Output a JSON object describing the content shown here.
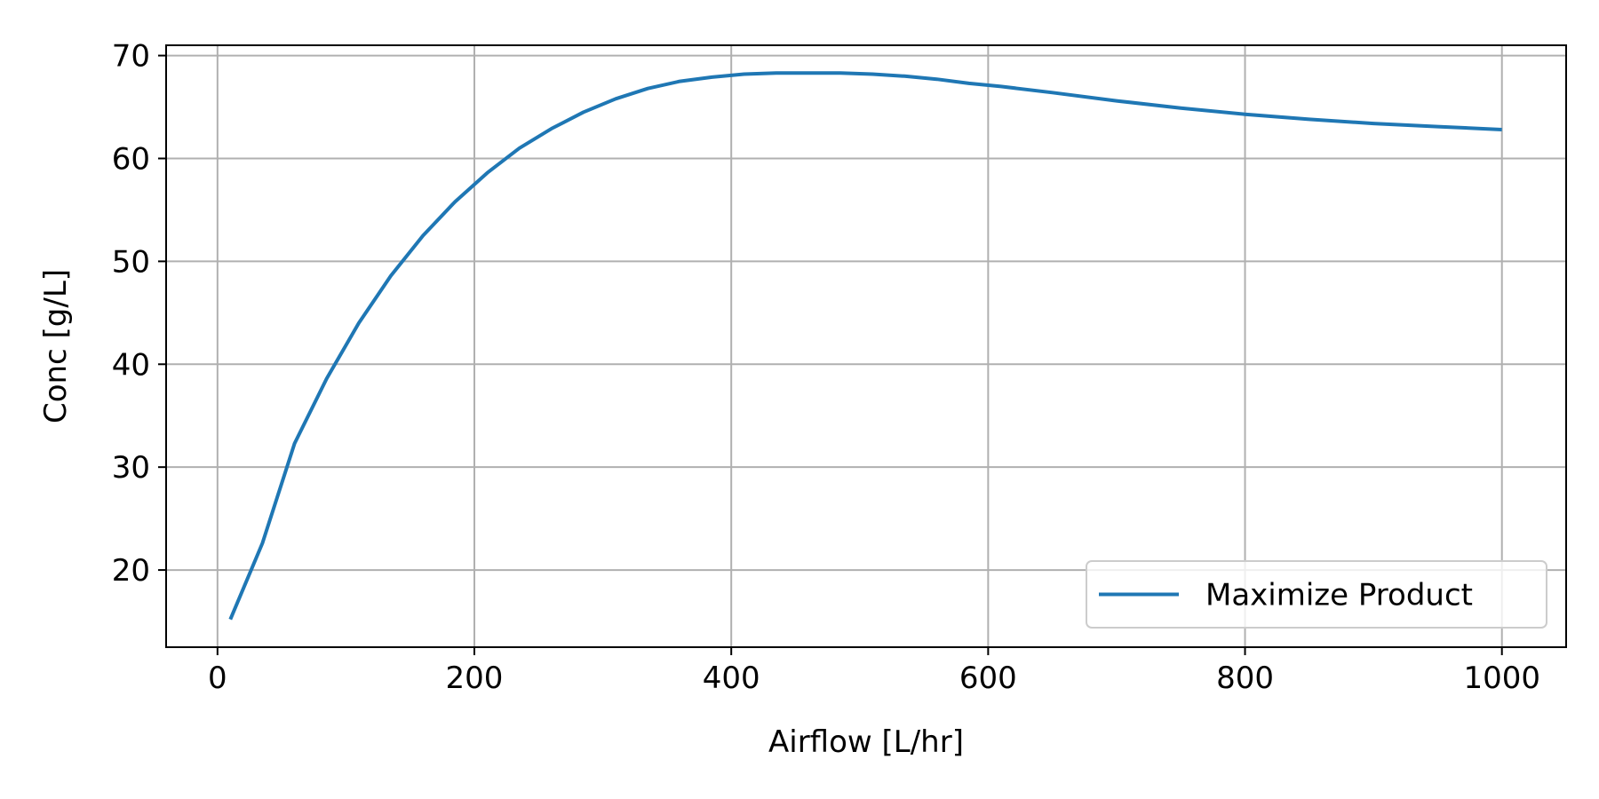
{
  "chart_data": {
    "type": "line",
    "title": "",
    "xlabel": "Airflow [L/hr]",
    "ylabel": "Conc [g/L]",
    "xlim": [
      -40,
      1050
    ],
    "ylim": [
      12.5,
      71
    ],
    "xticks": [
      0,
      200,
      400,
      600,
      800,
      1000
    ],
    "yticks": [
      20,
      30,
      40,
      50,
      60,
      70
    ],
    "grid": true,
    "legend_position": "lower-right",
    "series": [
      {
        "name": "Maximize Product",
        "color": "#1f77b4",
        "x": [
          10,
          35,
          60,
          85,
          110,
          135,
          160,
          185,
          210,
          235,
          260,
          285,
          310,
          335,
          360,
          385,
          410,
          435,
          460,
          485,
          510,
          535,
          560,
          585,
          610,
          650,
          700,
          750,
          800,
          850,
          900,
          950,
          1000
        ],
        "y": [
          15.2,
          22.6,
          32.3,
          38.6,
          44.0,
          48.6,
          52.5,
          55.8,
          58.6,
          61.0,
          62.9,
          64.5,
          65.8,
          66.8,
          67.5,
          67.9,
          68.2,
          68.3,
          68.3,
          68.3,
          68.2,
          68.0,
          67.7,
          67.3,
          67.0,
          66.4,
          65.6,
          64.9,
          64.3,
          63.8,
          63.4,
          63.1,
          62.8
        ]
      }
    ]
  }
}
